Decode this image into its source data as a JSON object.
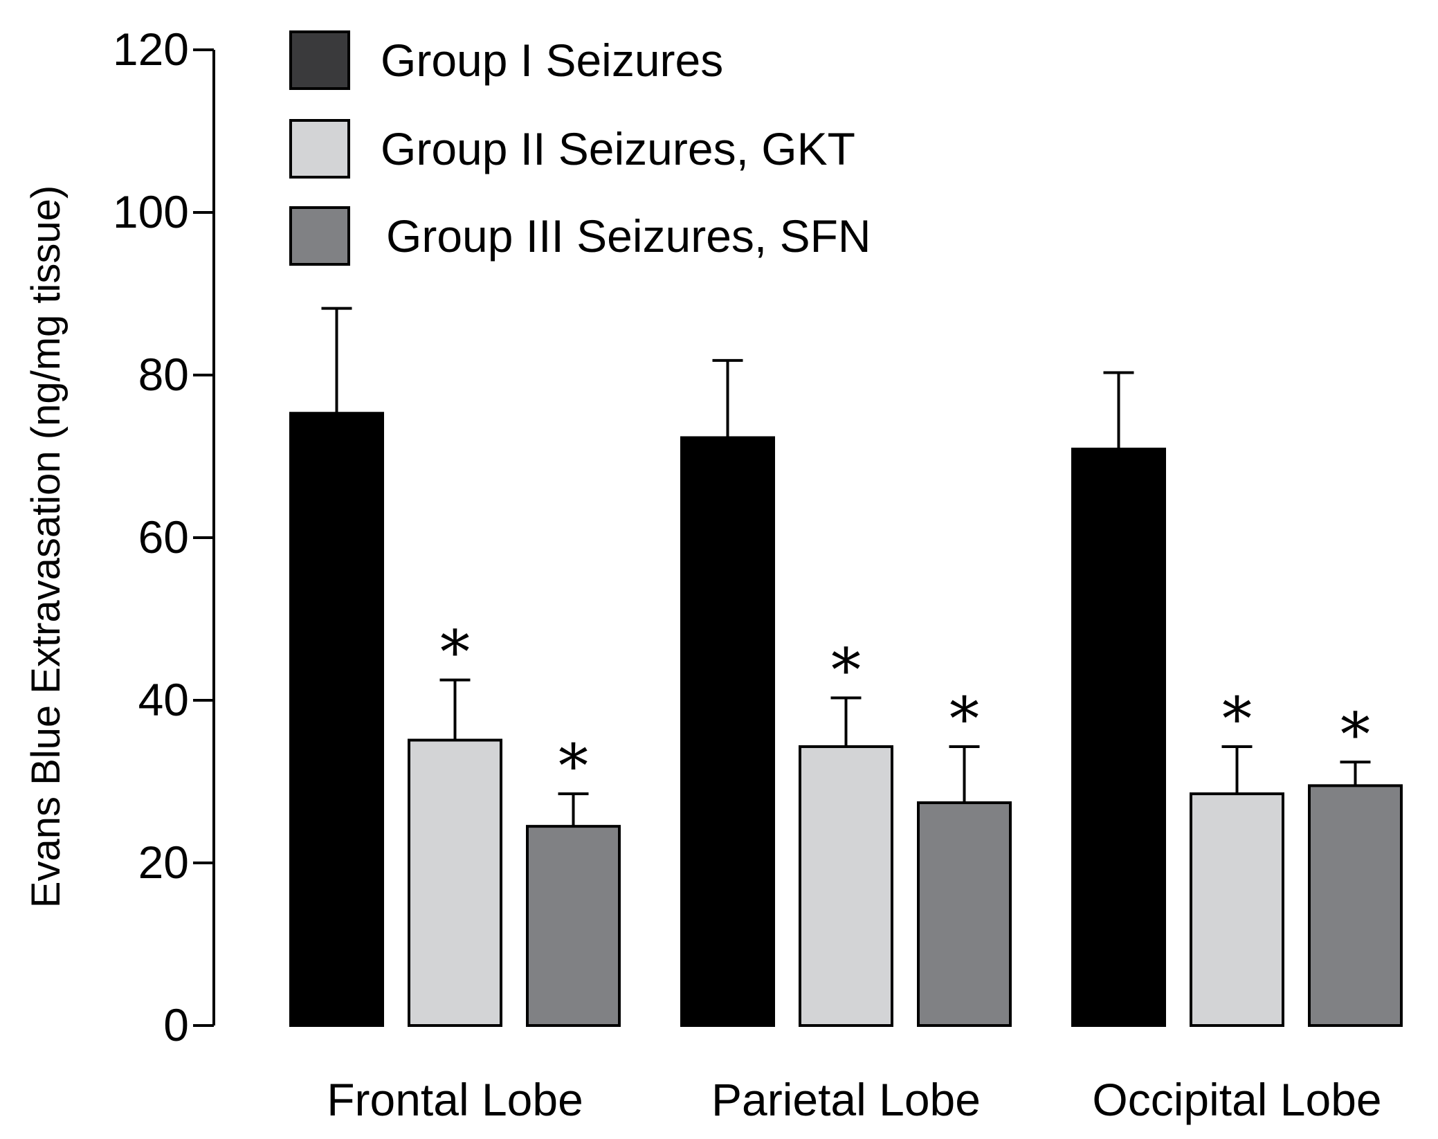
{
  "chart_data": {
    "type": "bar",
    "title": "",
    "xlabel": "",
    "ylabel": "Evans Blue Extravasation (ng/mg tissue)",
    "ylim": [
      0,
      120
    ],
    "yticks": [
      "0",
      "20",
      "40",
      "60",
      "80",
      "100",
      "120"
    ],
    "legend_position": "top-left",
    "categories": [
      "Frontal Lobe",
      "Parietal Lobe",
      "Occipital Lobe"
    ],
    "series": [
      {
        "name": "Group I Seizures",
        "color": "#000000",
        "legend_color": "#3a3a3c",
        "values": [
          75.3,
          72.3,
          70.9
        ],
        "errors": [
          12.9,
          9.5,
          9.4
        ],
        "significance": [
          "",
          "",
          ""
        ]
      },
      {
        "name": "Group II Seizures, GKT",
        "color": "#d3d4d6",
        "legend_color": "#d3d4d6",
        "values": [
          35.1,
          34.3,
          28.5
        ],
        "errors": [
          7.4,
          6.0,
          5.8
        ],
        "significance": [
          "*",
          "*",
          "*"
        ]
      },
      {
        "name": "Group III Seizures, SFN",
        "color": "#808184",
        "legend_color": "#808184",
        "values": [
          24.5,
          27.4,
          29.5
        ],
        "errors": [
          4.0,
          6.9,
          2.9
        ],
        "significance": [
          "*",
          "*",
          "*"
        ]
      }
    ]
  }
}
